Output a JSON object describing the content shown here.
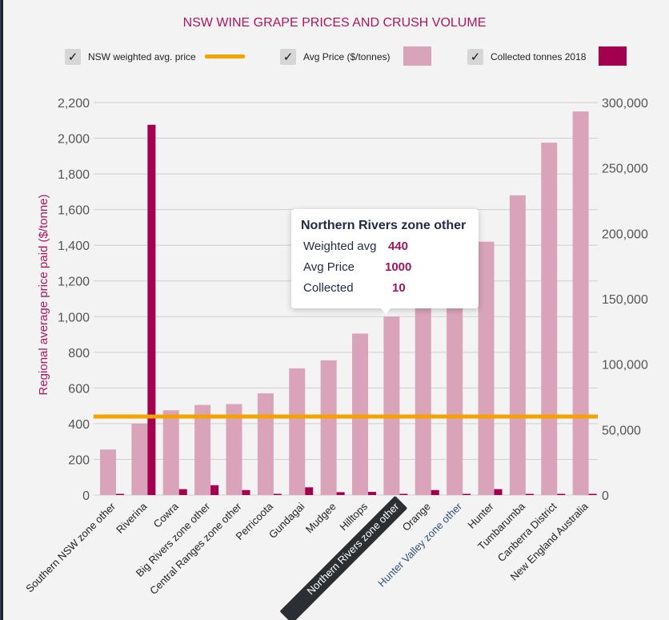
{
  "title": "NSW WINE GRAPE PRICES AND CRUSH VOLUME",
  "legend": [
    {
      "label": "NSW weighted avg. price",
      "checked": true,
      "color": "#f5a100"
    },
    {
      "label": "Avg Price ($/tonnes)",
      "checked": true,
      "color": "#d9a3b9"
    },
    {
      "label": "Collected tonnes 2018",
      "checked": true,
      "color": "#a3004f"
    }
  ],
  "check_glyph": "✓",
  "tooltip": {
    "title": "Northern Rivers zone other",
    "rows": [
      {
        "label": "Weighted avg",
        "value": "440"
      },
      {
        "label": "Avg Price",
        "value": "1000"
      },
      {
        "label": "Collected",
        "value": "10"
      }
    ]
  },
  "chart_data": {
    "type": "bar",
    "title": "NSW WINE GRAPE PRICES AND CRUSH VOLUME",
    "ylabel": "Regional average price paid ($/tonne)",
    "ylim": [
      0,
      2200
    ],
    "yticks": [
      0,
      200,
      400,
      600,
      800,
      1000,
      1200,
      1400,
      1600,
      1800,
      2000,
      2200
    ],
    "ytick_labels": [
      "0",
      "200",
      "400",
      "600",
      "800",
      "1,000",
      "1,200",
      "1,400",
      "1,600",
      "1,800",
      "2,000",
      "2,200"
    ],
    "y2lim": [
      0,
      300000
    ],
    "y2ticks": [
      0,
      50000,
      100000,
      150000,
      200000,
      250000,
      300000
    ],
    "y2tick_labels": [
      "0",
      "50,000",
      "100,000",
      "150,000",
      "200,000",
      "250,000",
      "300,000"
    ],
    "grid": true,
    "categories": [
      "Southern NSW zone other",
      "Riverina",
      "Cowra",
      "Big Rivers zone other",
      "Central Ranges zone other",
      "Perricoota",
      "Gundagai",
      "Mudgee",
      "Hilltops",
      "Northern Rivers zone other",
      "Orange",
      "Hunter Valley zone other",
      "Hunter",
      "Tumbarumba",
      "Canberra District",
      "New England Australia"
    ],
    "highlighted_category": "Northern Rivers zone other",
    "series": [
      {
        "name": "Avg Price ($/tonnes)",
        "axis": "left",
        "type": "bar",
        "color": "#d9a3b9",
        "values": [
          255,
          400,
          475,
          505,
          510,
          570,
          710,
          755,
          905,
          1000,
          1070,
          1200,
          1420,
          1680,
          1975,
          2150
        ]
      },
      {
        "name": "Collected tonnes 2018",
        "axis": "right",
        "type": "bar",
        "color": "#a3004f",
        "values": [
          100,
          283000,
          4500,
          7500,
          3800,
          300,
          5900,
          2200,
          2400,
          10,
          3800,
          300,
          4500,
          900,
          300,
          150
        ]
      },
      {
        "name": "NSW weighted avg. price",
        "axis": "left",
        "type": "line",
        "color": "#f5a100",
        "values": [
          440,
          440,
          440,
          440,
          440,
          440,
          440,
          440,
          440,
          440,
          440,
          440,
          440,
          440,
          440,
          440
        ]
      }
    ]
  }
}
